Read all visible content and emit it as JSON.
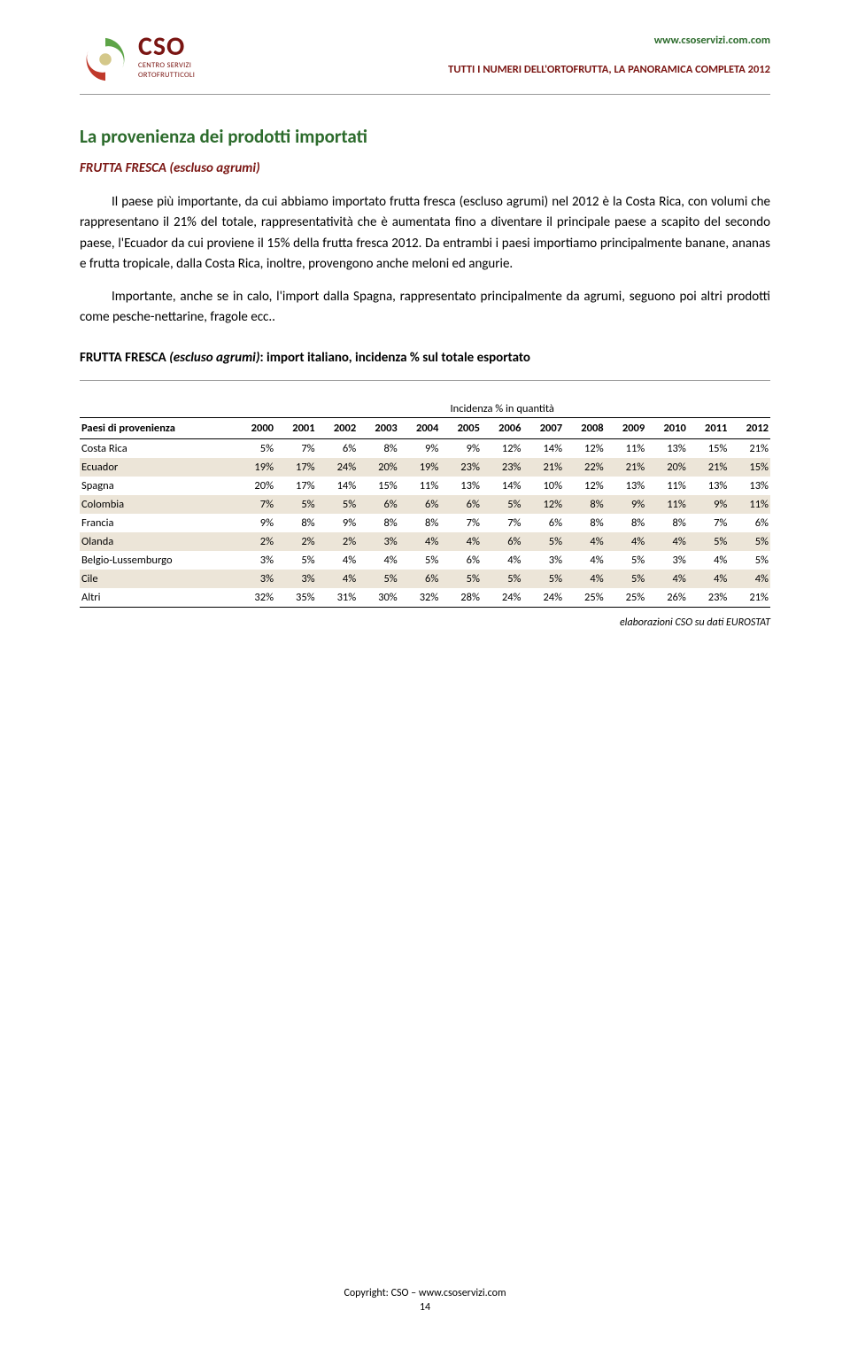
{
  "header": {
    "url": "www.csoservizi.com.com",
    "doc_title": "TUTTI I NUMERI DELL'ORTOFRUTTA, LA PANORAMICA COMPLETA 2012",
    "logo_main": "CSO",
    "logo_sub1": "CENTRO SERVIZI",
    "logo_sub2": "ORTOFRUTTICOLI"
  },
  "section": {
    "title": "La provenienza dei prodotti importati",
    "subhead": "FRUTTA FRESCA (escluso agrumi)"
  },
  "paragraphs": {
    "p1": "Il paese più importante, da cui abbiamo importato frutta fresca (escluso agrumi) nel 2012 è la Costa Rica, con volumi che rappresentano il 21% del totale, rappresentatività che è aumentata fino a diventare il principale paese a scapito del secondo paese, l'Ecuador da cui proviene il 15% della frutta fresca 2012. Da entrambi i paesi importiamo principalmente banane, ananas e frutta tropicale, dalla Costa Rica, inoltre, provengono anche meloni ed angurie.",
    "p2": "Importante, anche se in calo, l'import dalla Spagna, rappresentato principalmente da agrumi, seguono poi altri prodotti come pesche-nettarine, fragole ecc.."
  },
  "table": {
    "title_bold1": "FRUTTA FRESCA ",
    "title_italic": "(escluso agrumi)",
    "title_bold2": ": import italiano, incidenza % sul totale esportato",
    "super_header": "Incidenza % in quantità",
    "label_header": "Paesi di provenienza",
    "years": [
      "2000",
      "2001",
      "2002",
      "2003",
      "2004",
      "2005",
      "2006",
      "2007",
      "2008",
      "2009",
      "2010",
      "2011",
      "2012"
    ],
    "rows": [
      {
        "label": "Costa Rica",
        "cells": [
          "5%",
          "7%",
          "6%",
          "8%",
          "9%",
          "9%",
          "12%",
          "14%",
          "12%",
          "11%",
          "13%",
          "15%",
          "21%"
        ],
        "shade": false
      },
      {
        "label": "Ecuador",
        "cells": [
          "19%",
          "17%",
          "24%",
          "20%",
          "19%",
          "23%",
          "23%",
          "21%",
          "22%",
          "21%",
          "20%",
          "21%",
          "15%"
        ],
        "shade": true
      },
      {
        "label": "Spagna",
        "cells": [
          "20%",
          "17%",
          "14%",
          "15%",
          "11%",
          "13%",
          "14%",
          "10%",
          "12%",
          "13%",
          "11%",
          "13%",
          "13%"
        ],
        "shade": false
      },
      {
        "label": "Colombia",
        "cells": [
          "7%",
          "5%",
          "5%",
          "6%",
          "6%",
          "6%",
          "5%",
          "12%",
          "8%",
          "9%",
          "11%",
          "9%",
          "11%"
        ],
        "shade": true
      },
      {
        "label": "Francia",
        "cells": [
          "9%",
          "8%",
          "9%",
          "8%",
          "8%",
          "7%",
          "7%",
          "6%",
          "8%",
          "8%",
          "8%",
          "7%",
          "6%"
        ],
        "shade": false
      },
      {
        "label": "Olanda",
        "cells": [
          "2%",
          "2%",
          "2%",
          "3%",
          "4%",
          "4%",
          "6%",
          "5%",
          "4%",
          "4%",
          "4%",
          "5%",
          "5%"
        ],
        "shade": true
      },
      {
        "label": "Belgio-Lussemburgo",
        "cells": [
          "3%",
          "5%",
          "4%",
          "4%",
          "5%",
          "6%",
          "4%",
          "3%",
          "4%",
          "5%",
          "3%",
          "4%",
          "5%"
        ],
        "shade": false
      },
      {
        "label": "Cile",
        "cells": [
          "3%",
          "3%",
          "4%",
          "5%",
          "6%",
          "5%",
          "5%",
          "5%",
          "4%",
          "5%",
          "4%",
          "4%",
          "4%"
        ],
        "shade": true
      },
      {
        "label": "Altri",
        "cells": [
          "32%",
          "35%",
          "31%",
          "30%",
          "32%",
          "28%",
          "24%",
          "24%",
          "25%",
          "25%",
          "26%",
          "23%",
          "21%"
        ],
        "shade": false
      }
    ],
    "source": "elaborazioni CSO su dati EUROSTAT"
  },
  "footer": {
    "copyright": "Copyright: CSO – www.csoservizi.com",
    "page": "14"
  },
  "colors": {
    "brand_red": "#7a1512",
    "brand_green": "#2c6b2c",
    "shade_bg": "#ece5d8"
  }
}
